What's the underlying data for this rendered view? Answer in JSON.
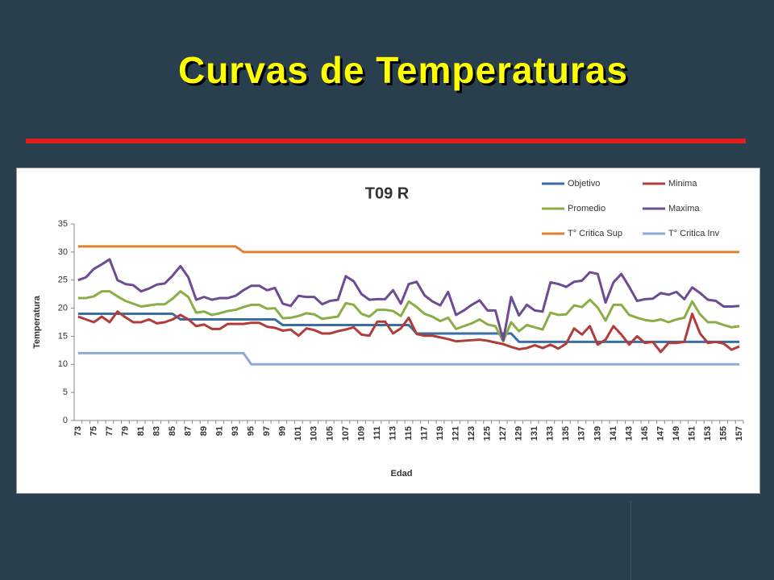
{
  "slide": {
    "title": "Curvas de Temperaturas"
  },
  "chart_data": {
    "type": "line",
    "title": "T09 R",
    "x_label": "Edad",
    "y_label": "Temperatura",
    "categories": [
      73,
      null,
      75,
      null,
      77,
      null,
      79,
      null,
      81,
      null,
      83,
      null,
      85,
      null,
      87,
      null,
      89,
      null,
      91,
      null,
      93,
      null,
      95,
      null,
      97,
      null,
      99,
      null,
      101,
      null,
      103,
      null,
      105,
      null,
      107,
      null,
      109,
      null,
      111,
      null,
      113,
      null,
      115,
      null,
      117,
      null,
      119,
      null,
      121,
      null,
      123,
      null,
      125,
      null,
      127,
      null,
      129,
      null,
      131,
      null,
      133,
      null,
      135,
      null,
      137,
      null,
      139,
      null,
      141,
      null,
      143,
      null,
      145,
      null,
      147,
      null,
      149,
      null,
      151,
      null,
      153,
      null,
      155,
      null,
      157
    ],
    "ylim": [
      0,
      35
    ],
    "yticks": [
      0,
      5,
      10,
      15,
      20,
      25,
      30,
      35
    ],
    "grid": false,
    "series": [
      {
        "name": "Objetivo",
        "color": "#3a6ea5",
        "values": [
          19,
          19,
          19,
          19,
          19,
          19,
          19,
          19,
          19,
          19,
          19,
          19,
          19,
          18,
          18,
          18,
          18,
          18,
          18,
          18,
          18,
          18,
          18,
          18,
          18,
          18,
          17,
          17,
          17,
          17,
          17,
          17,
          17,
          17,
          17,
          17,
          17,
          17,
          17,
          17,
          17,
          17,
          17,
          15.5,
          15.5,
          15.5,
          15.5,
          15.5,
          15.5,
          15.5,
          15.5,
          15.5,
          15.5,
          15.5,
          15.5,
          15.5,
          14,
          14,
          14,
          14,
          14,
          14,
          14,
          14,
          14,
          14,
          14,
          14,
          14,
          14,
          14,
          14,
          14,
          14,
          14,
          14,
          14,
          14,
          14,
          14,
          14,
          14,
          14,
          14,
          14
        ]
      },
      {
        "name": "Minima",
        "color": "#b13c3c",
        "values": [
          18.5,
          18,
          17.5,
          18.5,
          17.5,
          19.4,
          18.4,
          17.5,
          17.5,
          18,
          17.3,
          17.5,
          18,
          18.8,
          18,
          16.8,
          17.1,
          16.3,
          16.3,
          17.2,
          17.2,
          17.2,
          17.4,
          17.4,
          16.7,
          16.5,
          16,
          16.2,
          15.1,
          16.4,
          16.1,
          15.5,
          15.5,
          15.9,
          16.2,
          16.6,
          15.3,
          15.1,
          17.6,
          17.6,
          15.5,
          16.4,
          18.3,
          15.4,
          15.1,
          15.1,
          14.8,
          14.5,
          14.1,
          14.2,
          14.3,
          14.4,
          14.2,
          13.9,
          13.6,
          13.1,
          12.7,
          12.9,
          13.4,
          12.9,
          13.5,
          12.8,
          13.7,
          16.4,
          15.3,
          16.8,
          13.5,
          14.4,
          16.8,
          15.3,
          13.5,
          15,
          13.8,
          14,
          12.2,
          13.8,
          13.8,
          14,
          19,
          15.5,
          13.8,
          14,
          13.7,
          12.6,
          13.2
        ]
      },
      {
        "name": "Promedio",
        "color": "#8aad45",
        "values": [
          21.8,
          21.8,
          22.1,
          23,
          23,
          22.1,
          21.3,
          20.8,
          20.3,
          20.5,
          20.7,
          20.7,
          21.7,
          23,
          22,
          19.2,
          19.4,
          18.8,
          19.1,
          19.5,
          19.7,
          20.2,
          20.6,
          20.6,
          19.9,
          20,
          18.2,
          18.3,
          18.6,
          19.1,
          18.9,
          18.1,
          18.3,
          18.5,
          20.9,
          20.6,
          19,
          18.5,
          19.7,
          19.7,
          19.5,
          18.6,
          21.2,
          20.2,
          19,
          18.5,
          17.7,
          18.3,
          16.3,
          16.8,
          17.3,
          18,
          17.1,
          16.8,
          14.1,
          17.5,
          15.9,
          17,
          16.6,
          16.2,
          19.2,
          18.8,
          18.9,
          20.5,
          20.2,
          21.5,
          20.1,
          17.8,
          20.6,
          20.6,
          18.8,
          18.3,
          17.9,
          17.7,
          18,
          17.5,
          18,
          18.3,
          21.2,
          18.9,
          17.5,
          17.5,
          17,
          16.6,
          16.8
        ]
      },
      {
        "name": "Maxima",
        "color": "#6d4c93",
        "values": [
          25,
          25.5,
          27,
          27.8,
          28.7,
          25,
          24.3,
          24.1,
          23,
          23.5,
          24.2,
          24.4,
          25.8,
          27.5,
          25.5,
          21.5,
          22,
          21.5,
          21.8,
          21.8,
          22.2,
          23.2,
          24,
          24,
          23.2,
          23.6,
          20.8,
          20.4,
          22.2,
          22,
          22,
          20.7,
          21.3,
          21.5,
          25.7,
          24.8,
          22.5,
          21.5,
          21.6,
          21.6,
          23.2,
          20.8,
          24.3,
          24.7,
          22.3,
          21.2,
          20.5,
          22.9,
          18.8,
          19.6,
          20.6,
          21.4,
          19.6,
          19.6,
          14.3,
          22,
          18.7,
          20.6,
          19.6,
          19.4,
          24.6,
          24.3,
          23.8,
          24.7,
          24.9,
          26.4,
          26.1,
          21,
          24.6,
          26.1,
          23.8,
          21.3,
          21.6,
          21.7,
          22.7,
          22.4,
          22.9,
          21.6,
          23.7,
          22.7,
          21.5,
          21.3,
          20.3,
          20.3,
          20.4
        ]
      },
      {
        "name": "T° Critica Sup",
        "color": "#e0822d",
        "values": [
          31,
          31,
          31,
          31,
          31,
          31,
          31,
          31,
          31,
          31,
          31,
          31,
          31,
          31,
          31,
          31,
          31,
          31,
          31,
          31,
          31,
          30,
          30,
          30,
          30,
          30,
          30,
          30,
          30,
          30,
          30,
          30,
          30,
          30,
          30,
          30,
          30,
          30,
          30,
          30,
          30,
          30,
          30,
          30,
          30,
          30,
          30,
          30,
          30,
          30,
          30,
          30,
          30,
          30,
          30,
          30,
          30,
          30,
          30,
          30,
          30,
          30,
          30,
          30,
          30,
          30,
          30,
          30,
          30,
          30,
          30,
          30,
          30,
          30,
          30,
          30,
          30,
          30,
          30,
          30,
          30,
          30,
          30,
          30,
          30
        ]
      },
      {
        "name": "T° Critica Inv",
        "color": "#8eaad6",
        "values": [
          12,
          12,
          12,
          12,
          12,
          12,
          12,
          12,
          12,
          12,
          12,
          12,
          12,
          12,
          12,
          12,
          12,
          12,
          12,
          12,
          12,
          12,
          10,
          10,
          10,
          10,
          10,
          10,
          10,
          10,
          10,
          10,
          10,
          10,
          10,
          10,
          10,
          10,
          10,
          10,
          10,
          10,
          10,
          10,
          10,
          10,
          10,
          10,
          10,
          10,
          10,
          10,
          10,
          10,
          10,
          10,
          10,
          10,
          10,
          10,
          10,
          10,
          10,
          10,
          10,
          10,
          10,
          10,
          10,
          10,
          10,
          10,
          10,
          10,
          10,
          10,
          10,
          10,
          10,
          10,
          10,
          10,
          10,
          10,
          10
        ]
      }
    ]
  }
}
